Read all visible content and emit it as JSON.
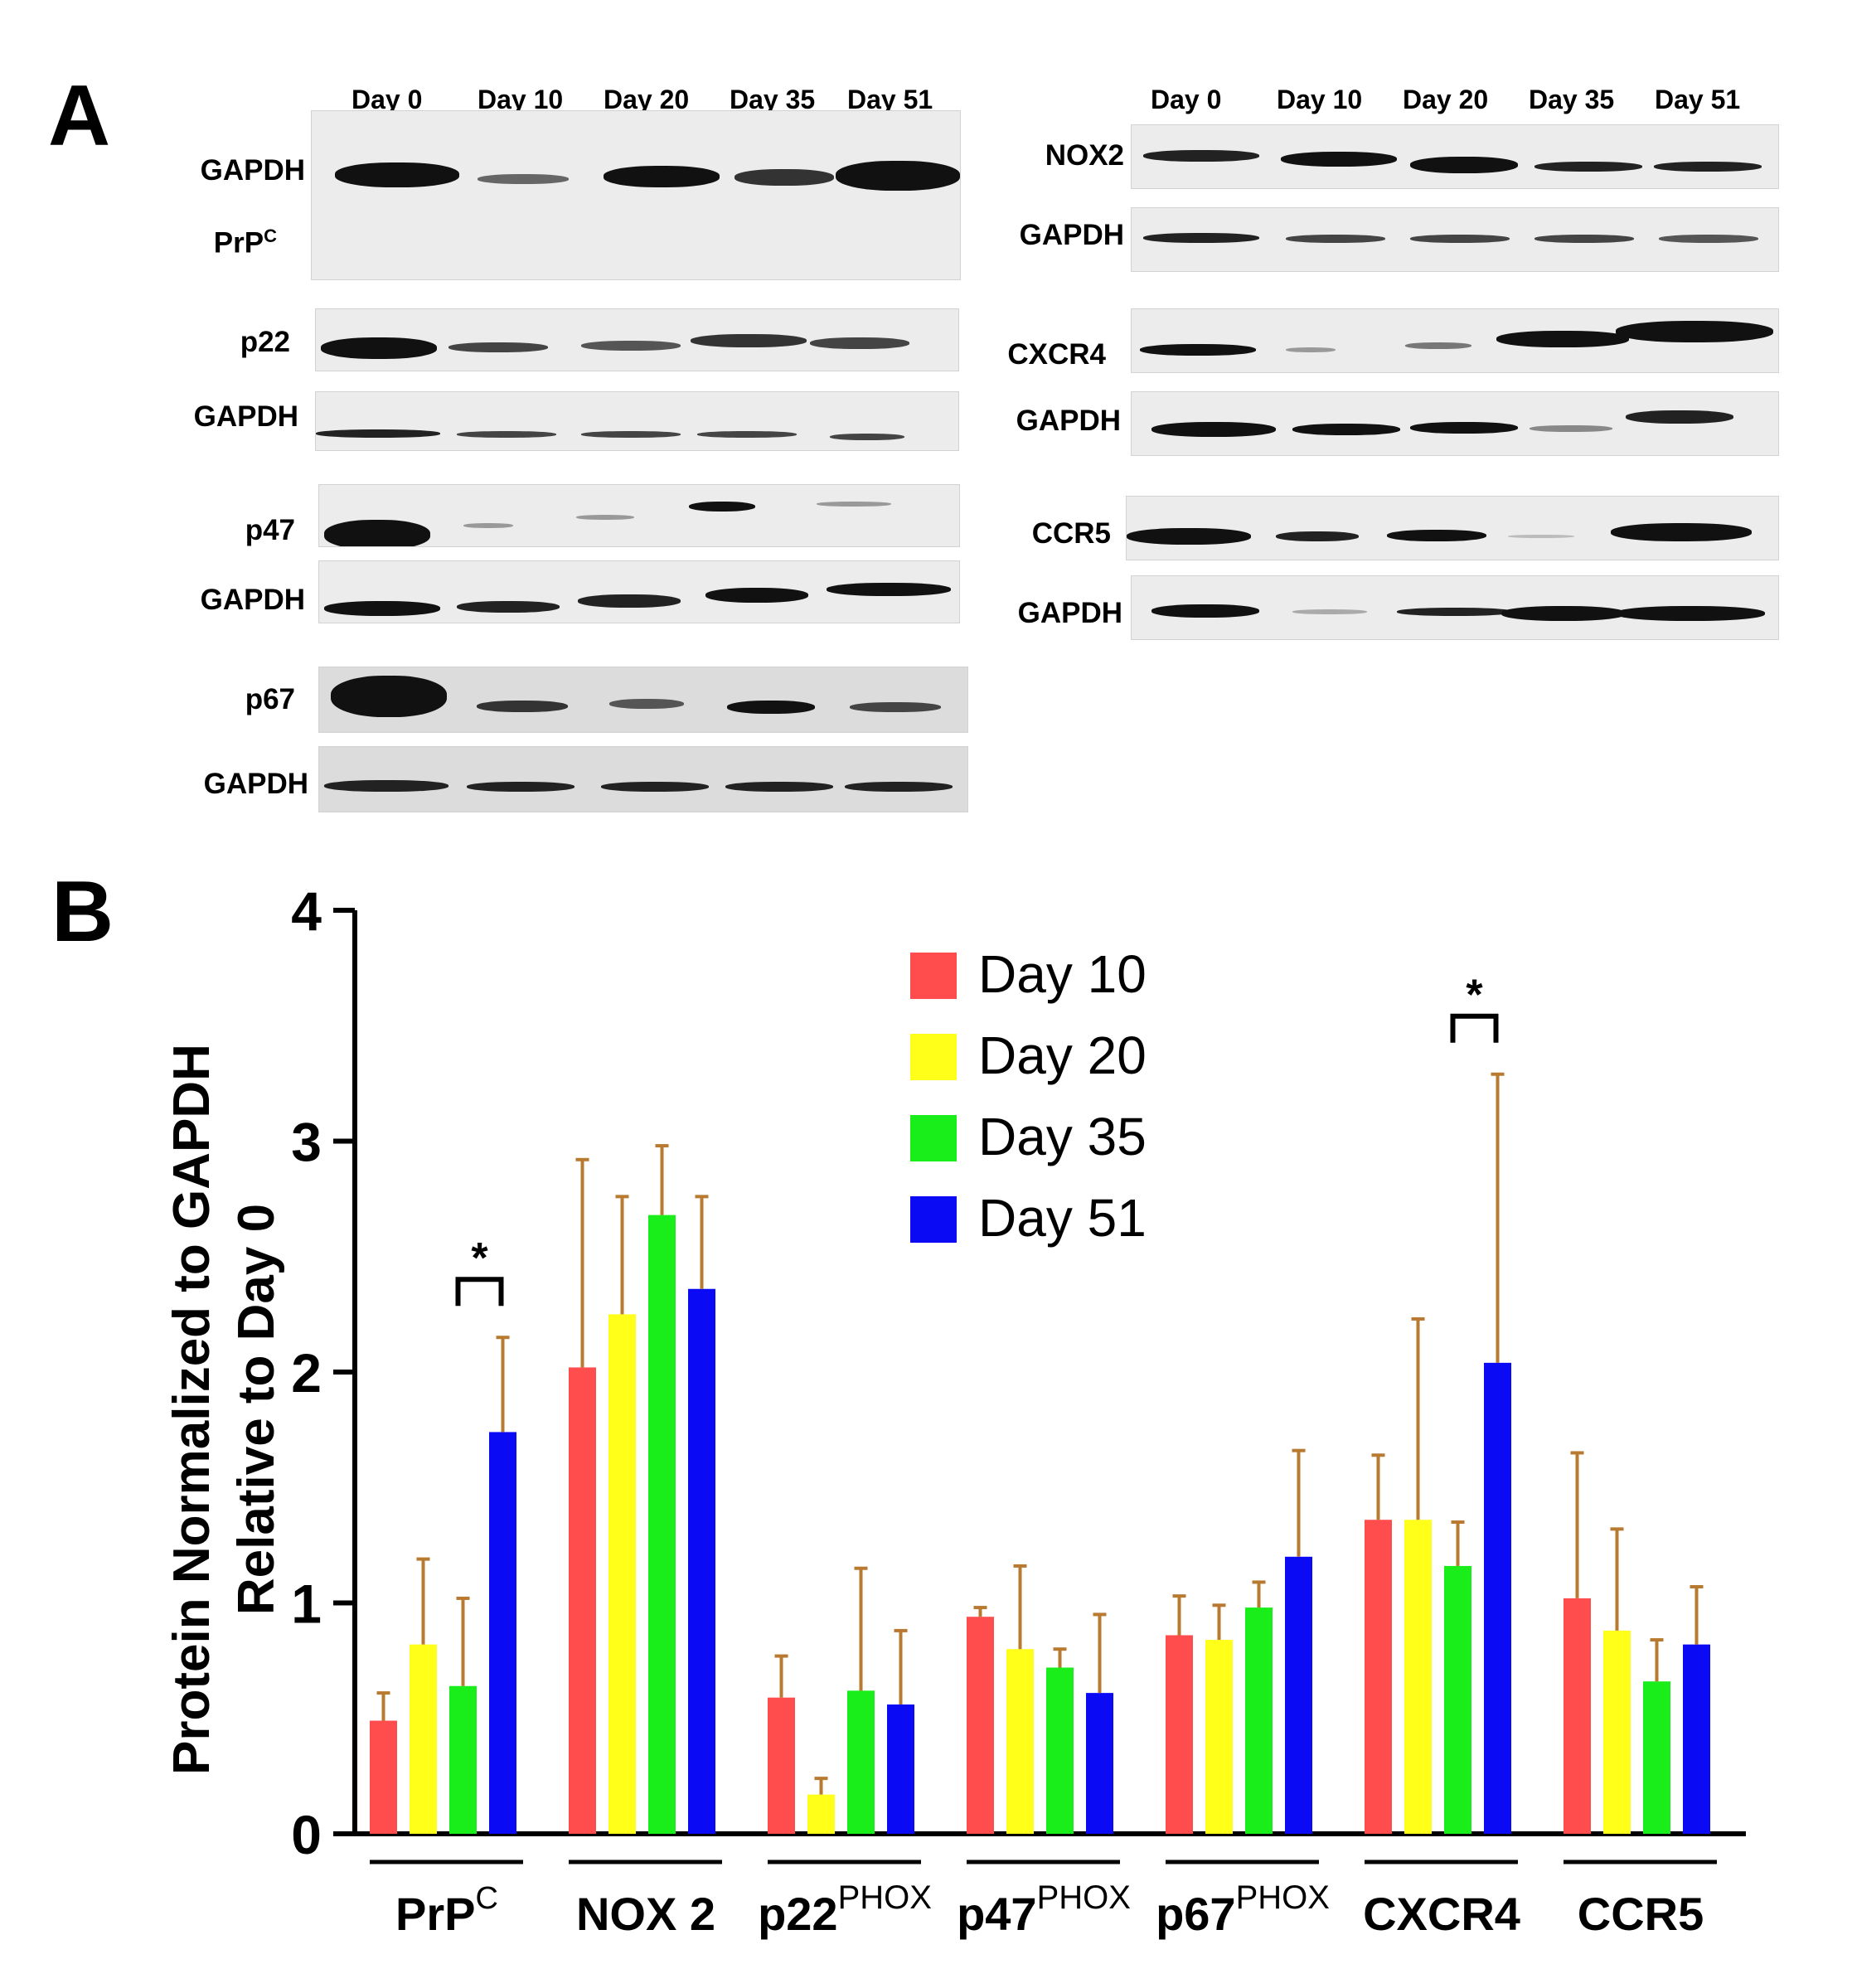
{
  "panel_a": {
    "letter": "A",
    "lanes": [
      "Day 0",
      "Day 10",
      "Day 20",
      "Day 35",
      "Day 51"
    ],
    "proteins": {
      "gapdh": "GAPDH",
      "prpc_base": "PrP",
      "prpc_sup": "C",
      "p22": "p22",
      "p47": "p47",
      "p67": "p67",
      "nox2": "NOX2",
      "cxcr4": "CXCR4",
      "ccr5": "CCR5"
    }
  },
  "panel_b": {
    "letter": "B"
  },
  "chart_data": {
    "type": "bar",
    "ylabel_line1": "Protein Normalized to GAPDH",
    "ylabel_line2": "Relative to Day 0",
    "ylim": [
      0,
      4
    ],
    "yticks": [
      "0",
      "1",
      "2",
      "3",
      "4"
    ],
    "legend_position": "top-center",
    "categories": [
      {
        "base": "PrP",
        "sup": "C"
      },
      {
        "base": "NOX 2",
        "sup": ""
      },
      {
        "base": "p22",
        "sup": "PHOX"
      },
      {
        "base": "p47",
        "sup": "PHOX"
      },
      {
        "base": "p67",
        "sup": "PHOX"
      },
      {
        "base": "CXCR4",
        "sup": ""
      },
      {
        "base": "CCR5",
        "sup": ""
      }
    ],
    "series": [
      {
        "name": "Day 10",
        "color": "#ff4d4d",
        "values": [
          0.49,
          2.02,
          0.59,
          0.94,
          0.86,
          1.36,
          1.02
        ],
        "errors": [
          0.12,
          0.9,
          0.18,
          0.04,
          0.17,
          0.28,
          0.63
        ]
      },
      {
        "name": "Day 20",
        "color": "#ffff1a",
        "values": [
          0.82,
          2.25,
          0.17,
          0.8,
          0.84,
          1.36,
          0.88
        ],
        "errors": [
          0.37,
          0.51,
          0.07,
          0.36,
          0.15,
          0.87,
          0.44
        ]
      },
      {
        "name": "Day 35",
        "color": "#1aee1a",
        "values": [
          0.64,
          2.68,
          0.62,
          0.72,
          0.98,
          1.16,
          0.66
        ],
        "errors": [
          0.38,
          0.3,
          0.53,
          0.08,
          0.11,
          0.19,
          0.18
        ]
      },
      {
        "name": "Day 51",
        "color": "#0a0af5",
        "values": [
          1.74,
          2.36,
          0.56,
          0.61,
          1.2,
          2.04,
          0.82
        ],
        "errors": [
          0.41,
          0.4,
          0.32,
          0.34,
          0.46,
          1.25,
          0.25
        ]
      }
    ],
    "error_bar_color": "#b87a30",
    "annotations": [
      {
        "text": "*",
        "category_index": 0
      },
      {
        "text": "*",
        "category_index": 5
      }
    ]
  }
}
